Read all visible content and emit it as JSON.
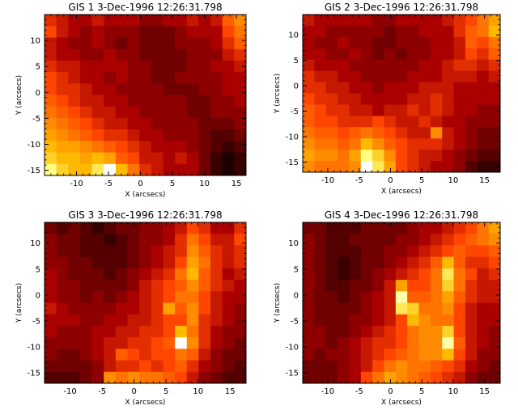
{
  "chart_data": [
    {
      "type": "heatmap",
      "title": "GIS 1   3-Dec-1996 12:26:31.798",
      "xlabel": "X (arcsecs)",
      "ylabel": "Y (arcsecs)",
      "xlim": [
        -15,
        16.5
      ],
      "ylim": [
        -16,
        15
      ],
      "x_ticks": [
        -10,
        -5,
        0,
        5,
        10,
        15
      ],
      "y_ticks": [
        -15,
        -10,
        -5,
        0,
        5,
        10
      ],
      "colormap": "red-temperature",
      "grid": [
        [
          0.4,
          0.35,
          0.3,
          0.3,
          0.35,
          0.3,
          0.3,
          0.3,
          0.25,
          0.25,
          0.3,
          0.3,
          0.35,
          0.3,
          0.35,
          0.5,
          0.6
        ],
        [
          0.45,
          0.35,
          0.3,
          0.25,
          0.3,
          0.25,
          0.25,
          0.25,
          0.2,
          0.2,
          0.2,
          0.25,
          0.3,
          0.3,
          0.3,
          0.45,
          0.55
        ],
        [
          0.35,
          0.3,
          0.25,
          0.25,
          0.3,
          0.25,
          0.2,
          0.25,
          0.2,
          0.2,
          0.2,
          0.25,
          0.25,
          0.25,
          0.3,
          0.4,
          0.5
        ],
        [
          0.35,
          0.3,
          0.3,
          0.25,
          0.25,
          0.3,
          0.25,
          0.25,
          0.2,
          0.2,
          0.2,
          0.2,
          0.25,
          0.25,
          0.25,
          0.35,
          0.4
        ],
        [
          0.4,
          0.35,
          0.35,
          0.3,
          0.3,
          0.3,
          0.3,
          0.25,
          0.25,
          0.2,
          0.2,
          0.2,
          0.25,
          0.25,
          0.3,
          0.3,
          0.35
        ],
        [
          0.45,
          0.4,
          0.35,
          0.3,
          0.3,
          0.25,
          0.3,
          0.25,
          0.25,
          0.2,
          0.2,
          0.25,
          0.25,
          0.25,
          0.25,
          0.3,
          0.3
        ],
        [
          0.45,
          0.4,
          0.4,
          0.35,
          0.3,
          0.3,
          0.25,
          0.25,
          0.25,
          0.25,
          0.2,
          0.2,
          0.2,
          0.25,
          0.25,
          0.3,
          0.3
        ],
        [
          0.5,
          0.45,
          0.4,
          0.35,
          0.35,
          0.3,
          0.3,
          0.25,
          0.25,
          0.25,
          0.25,
          0.25,
          0.2,
          0.2,
          0.25,
          0.25,
          0.3
        ],
        [
          0.55,
          0.5,
          0.45,
          0.4,
          0.35,
          0.35,
          0.3,
          0.3,
          0.25,
          0.25,
          0.25,
          0.25,
          0.2,
          0.2,
          0.25,
          0.25,
          0.25
        ],
        [
          0.6,
          0.55,
          0.5,
          0.45,
          0.4,
          0.35,
          0.35,
          0.3,
          0.3,
          0.25,
          0.25,
          0.25,
          0.25,
          0.2,
          0.2,
          0.2,
          0.25
        ],
        [
          0.65,
          0.6,
          0.55,
          0.5,
          0.45,
          0.4,
          0.4,
          0.35,
          0.3,
          0.3,
          0.25,
          0.25,
          0.25,
          0.2,
          0.15,
          0.15,
          0.2
        ],
        [
          0.7,
          0.65,
          0.65,
          0.6,
          0.55,
          0.5,
          0.45,
          0.4,
          0.35,
          0.3,
          0.3,
          0.3,
          0.25,
          0.2,
          0.15,
          0.1,
          0.15
        ],
        [
          0.75,
          0.7,
          0.7,
          0.65,
          0.7,
          0.65,
          0.5,
          0.45,
          0.35,
          0.35,
          0.3,
          0.35,
          0.3,
          0.2,
          0.1,
          0.05,
          0.1
        ],
        [
          0.85,
          0.75,
          0.7,
          0.7,
          0.8,
          1.0,
          0.7,
          0.55,
          0.4,
          0.35,
          0.3,
          0.3,
          0.3,
          0.2,
          0.1,
          0.05,
          0.1
        ]
      ]
    },
    {
      "type": "heatmap",
      "title": "GIS 2   3-Dec-1996 12:26:31.798",
      "xlabel": "X (arcsecs)",
      "ylabel": "Y (arcsecs)",
      "xlim": [
        -14,
        17.5
      ],
      "ylim": [
        -17,
        14
      ],
      "x_ticks": [
        -10,
        -5,
        0,
        5,
        10,
        15
      ],
      "y_ticks": [
        -15,
        -10,
        -5,
        0,
        5,
        10
      ],
      "colormap": "red-temperature",
      "grid": [
        [
          0.35,
          0.3,
          0.3,
          0.3,
          0.3,
          0.3,
          0.25,
          0.25,
          0.3,
          0.3,
          0.3,
          0.3,
          0.35,
          0.4,
          0.45,
          0.55,
          0.65
        ],
        [
          0.3,
          0.3,
          0.25,
          0.25,
          0.25,
          0.25,
          0.25,
          0.2,
          0.25,
          0.25,
          0.3,
          0.3,
          0.3,
          0.4,
          0.5,
          0.55,
          0.7
        ],
        [
          0.3,
          0.25,
          0.25,
          0.3,
          0.25,
          0.25,
          0.2,
          0.2,
          0.25,
          0.25,
          0.25,
          0.3,
          0.3,
          0.35,
          0.5,
          0.45,
          0.55
        ],
        [
          0.3,
          0.3,
          0.25,
          0.25,
          0.3,
          0.25,
          0.2,
          0.25,
          0.2,
          0.25,
          0.25,
          0.3,
          0.3,
          0.35,
          0.45,
          0.4,
          0.5
        ],
        [
          0.35,
          0.3,
          0.3,
          0.3,
          0.25,
          0.25,
          0.25,
          0.25,
          0.25,
          0.25,
          0.3,
          0.3,
          0.35,
          0.4,
          0.4,
          0.35,
          0.4
        ],
        [
          0.4,
          0.35,
          0.35,
          0.3,
          0.3,
          0.25,
          0.25,
          0.25,
          0.25,
          0.3,
          0.3,
          0.3,
          0.35,
          0.35,
          0.35,
          0.3,
          0.35
        ],
        [
          0.4,
          0.4,
          0.35,
          0.35,
          0.3,
          0.3,
          0.25,
          0.3,
          0.3,
          0.3,
          0.35,
          0.35,
          0.35,
          0.3,
          0.3,
          0.3,
          0.3
        ],
        [
          0.45,
          0.4,
          0.4,
          0.35,
          0.35,
          0.3,
          0.3,
          0.3,
          0.3,
          0.35,
          0.35,
          0.4,
          0.35,
          0.3,
          0.3,
          0.3,
          0.3
        ],
        [
          0.5,
          0.45,
          0.4,
          0.4,
          0.35,
          0.35,
          0.3,
          0.35,
          0.35,
          0.4,
          0.35,
          0.4,
          0.35,
          0.3,
          0.3,
          0.25,
          0.25
        ],
        [
          0.5,
          0.45,
          0.45,
          0.4,
          0.4,
          0.4,
          0.45,
          0.4,
          0.35,
          0.35,
          0.4,
          0.35,
          0.3,
          0.3,
          0.25,
          0.25,
          0.25
        ],
        [
          0.55,
          0.5,
          0.5,
          0.45,
          0.5,
          0.55,
          0.5,
          0.45,
          0.4,
          0.35,
          0.35,
          0.6,
          0.35,
          0.3,
          0.25,
          0.2,
          0.2
        ],
        [
          0.6,
          0.55,
          0.55,
          0.5,
          0.55,
          0.7,
          0.6,
          0.5,
          0.45,
          0.4,
          0.4,
          0.4,
          0.35,
          0.3,
          0.25,
          0.2,
          0.2
        ],
        [
          0.65,
          0.6,
          0.6,
          0.55,
          0.65,
          0.85,
          0.75,
          0.6,
          0.45,
          0.4,
          0.35,
          0.35,
          0.3,
          0.25,
          0.2,
          0.15,
          0.15
        ],
        [
          0.6,
          0.55,
          0.55,
          0.55,
          0.6,
          1.0,
          0.8,
          0.65,
          0.45,
          0.4,
          0.35,
          0.3,
          0.3,
          0.25,
          0.15,
          0.1,
          0.1
        ]
      ]
    },
    {
      "type": "heatmap",
      "title": "GIS 3   3-Dec-1996 12:26:31.798",
      "xlabel": "X (arcsecs)",
      "ylabel": "Y (arcsecs)",
      "xlim": [
        -14,
        17.5
      ],
      "ylim": [
        -17,
        14
      ],
      "x_ticks": [
        -10,
        -5,
        0,
        5,
        10,
        15
      ],
      "y_ticks": [
        -15,
        -10,
        -5,
        0,
        5,
        10
      ],
      "colormap": "red-temperature",
      "grid": [
        [
          0.2,
          0.15,
          0.2,
          0.15,
          0.1,
          0.15,
          0.2,
          0.2,
          0.25,
          0.25,
          0.3,
          0.35,
          0.45,
          0.4,
          0.3,
          0.3,
          0.4
        ],
        [
          0.25,
          0.2,
          0.2,
          0.15,
          0.15,
          0.1,
          0.15,
          0.2,
          0.25,
          0.25,
          0.3,
          0.4,
          0.55,
          0.45,
          0.35,
          0.35,
          0.45
        ],
        [
          0.25,
          0.2,
          0.2,
          0.15,
          0.15,
          0.15,
          0.15,
          0.2,
          0.25,
          0.3,
          0.35,
          0.4,
          0.6,
          0.5,
          0.4,
          0.35,
          0.4
        ],
        [
          0.25,
          0.25,
          0.2,
          0.2,
          0.15,
          0.15,
          0.15,
          0.2,
          0.25,
          0.3,
          0.35,
          0.45,
          0.65,
          0.55,
          0.4,
          0.35,
          0.4
        ],
        [
          0.3,
          0.25,
          0.2,
          0.2,
          0.2,
          0.15,
          0.2,
          0.25,
          0.3,
          0.35,
          0.4,
          0.55,
          0.7,
          0.5,
          0.4,
          0.3,
          0.35
        ],
        [
          0.3,
          0.25,
          0.25,
          0.2,
          0.2,
          0.2,
          0.2,
          0.25,
          0.35,
          0.4,
          0.45,
          0.5,
          0.6,
          0.5,
          0.4,
          0.35,
          0.3
        ],
        [
          0.3,
          0.25,
          0.25,
          0.2,
          0.25,
          0.2,
          0.25,
          0.3,
          0.35,
          0.4,
          0.45,
          0.55,
          0.55,
          0.45,
          0.35,
          0.3,
          0.3
        ],
        [
          0.35,
          0.3,
          0.25,
          0.25,
          0.25,
          0.25,
          0.3,
          0.3,
          0.35,
          0.4,
          0.65,
          0.5,
          0.6,
          0.45,
          0.35,
          0.3,
          0.25
        ],
        [
          0.3,
          0.3,
          0.3,
          0.25,
          0.25,
          0.3,
          0.3,
          0.35,
          0.35,
          0.4,
          0.45,
          0.45,
          0.6,
          0.4,
          0.35,
          0.3,
          0.25
        ],
        [
          0.3,
          0.25,
          0.25,
          0.25,
          0.3,
          0.3,
          0.35,
          0.35,
          0.4,
          0.4,
          0.45,
          0.7,
          0.55,
          0.4,
          0.3,
          0.25,
          0.25
        ],
        [
          0.25,
          0.25,
          0.25,
          0.25,
          0.3,
          0.35,
          0.35,
          0.4,
          0.4,
          0.45,
          0.5,
          1.0,
          0.6,
          0.4,
          0.3,
          0.25,
          0.2
        ],
        [
          0.25,
          0.2,
          0.2,
          0.25,
          0.3,
          0.35,
          0.5,
          0.45,
          0.4,
          0.45,
          0.45,
          0.55,
          0.5,
          0.35,
          0.25,
          0.2,
          0.2
        ],
        [
          0.2,
          0.2,
          0.2,
          0.2,
          0.25,
          0.35,
          0.4,
          0.4,
          0.45,
          0.4,
          0.45,
          0.5,
          0.4,
          0.3,
          0.25,
          0.2,
          0.15
        ],
        [
          0.15,
          0.15,
          0.15,
          0.2,
          0.25,
          0.6,
          0.55,
          0.6,
          0.55,
          0.55,
          0.5,
          0.45,
          0.35,
          0.25,
          0.2,
          0.15,
          0.15
        ]
      ]
    },
    {
      "type": "heatmap",
      "title": "GIS 4   3-Dec-1996 12:26:31.798",
      "xlabel": "X (arcsecs)",
      "ylabel": "Y (arcsecs)",
      "xlim": [
        -14,
        17.5
      ],
      "ylim": [
        -17,
        14
      ],
      "x_ticks": [
        -10,
        -5,
        0,
        5,
        10,
        15
      ],
      "y_ticks": [
        -15,
        -10,
        -5,
        0,
        5,
        10
      ],
      "colormap": "red-temperature",
      "grid": [
        [
          0.2,
          0.2,
          0.15,
          0.15,
          0.15,
          0.2,
          0.2,
          0.2,
          0.2,
          0.25,
          0.3,
          0.3,
          0.35,
          0.4,
          0.45,
          0.55,
          0.65
        ],
        [
          0.25,
          0.2,
          0.15,
          0.15,
          0.2,
          0.2,
          0.2,
          0.2,
          0.25,
          0.25,
          0.3,
          0.35,
          0.4,
          0.45,
          0.5,
          0.55,
          0.6
        ],
        [
          0.25,
          0.2,
          0.15,
          0.15,
          0.15,
          0.2,
          0.2,
          0.25,
          0.25,
          0.3,
          0.35,
          0.4,
          0.45,
          0.5,
          0.45,
          0.45,
          0.5
        ],
        [
          0.25,
          0.2,
          0.15,
          0.1,
          0.15,
          0.2,
          0.2,
          0.25,
          0.3,
          0.35,
          0.4,
          0.5,
          0.7,
          0.5,
          0.4,
          0.4,
          0.45
        ],
        [
          0.25,
          0.2,
          0.15,
          0.1,
          0.15,
          0.2,
          0.25,
          0.3,
          0.35,
          0.4,
          0.45,
          0.55,
          0.8,
          0.55,
          0.45,
          0.35,
          0.4
        ],
        [
          0.25,
          0.2,
          0.15,
          0.15,
          0.2,
          0.2,
          0.25,
          0.35,
          0.65,
          0.45,
          0.45,
          0.55,
          0.75,
          0.55,
          0.4,
          0.35,
          0.35
        ],
        [
          0.25,
          0.2,
          0.2,
          0.15,
          0.2,
          0.25,
          0.3,
          0.35,
          0.9,
          0.5,
          0.5,
          0.55,
          0.65,
          0.5,
          0.4,
          0.35,
          0.35
        ],
        [
          0.25,
          0.2,
          0.2,
          0.2,
          0.2,
          0.25,
          0.3,
          0.35,
          0.8,
          0.75,
          0.55,
          0.55,
          0.6,
          0.45,
          0.35,
          0.3,
          0.3
        ],
        [
          0.25,
          0.2,
          0.2,
          0.2,
          0.25,
          0.25,
          0.3,
          0.35,
          0.45,
          0.7,
          0.6,
          0.55,
          0.55,
          0.45,
          0.35,
          0.3,
          0.3
        ],
        [
          0.25,
          0.25,
          0.2,
          0.2,
          0.25,
          0.3,
          0.35,
          0.4,
          0.45,
          0.55,
          0.6,
          0.6,
          0.75,
          0.45,
          0.35,
          0.3,
          0.25
        ],
        [
          0.25,
          0.25,
          0.2,
          0.25,
          0.3,
          0.35,
          0.4,
          0.4,
          0.45,
          0.55,
          0.6,
          0.6,
          0.9,
          0.5,
          0.35,
          0.3,
          0.25
        ],
        [
          0.25,
          0.2,
          0.25,
          0.25,
          0.3,
          0.35,
          0.4,
          0.45,
          0.5,
          0.55,
          0.6,
          0.6,
          0.7,
          0.45,
          0.35,
          0.25,
          0.25
        ],
        [
          0.2,
          0.2,
          0.2,
          0.25,
          0.3,
          0.35,
          0.45,
          0.55,
          0.6,
          0.55,
          0.55,
          0.5,
          0.45,
          0.4,
          0.3,
          0.25,
          0.2
        ],
        [
          0.2,
          0.2,
          0.2,
          0.25,
          0.3,
          0.45,
          0.55,
          0.65,
          0.6,
          0.55,
          0.5,
          0.45,
          0.4,
          0.35,
          0.25,
          0.2,
          0.2
        ]
      ]
    }
  ]
}
